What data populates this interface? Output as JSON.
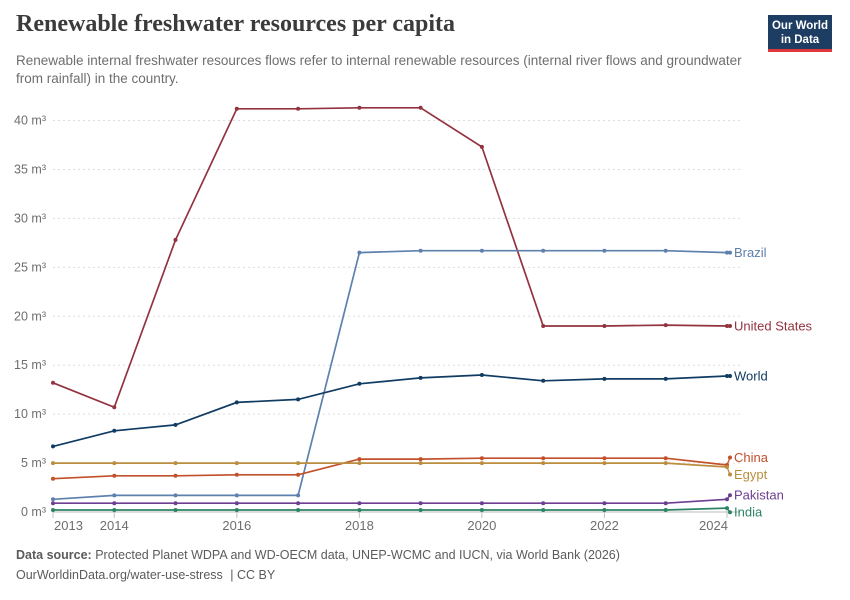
{
  "header": {
    "title": "Renewable freshwater resources per capita",
    "subtitle": "Renewable internal freshwater resources flows refer to internal renewable resources (internal river flows and groundwater from rainfall) in the country.",
    "logo": {
      "line1": "Our World",
      "line2": "in Data"
    }
  },
  "chart_data": {
    "type": "line",
    "title": "Renewable freshwater resources per capita",
    "unit": "m³",
    "x": [
      2013,
      2014,
      2015,
      2016,
      2017,
      2018,
      2019,
      2020,
      2021,
      2022,
      2023,
      2024
    ],
    "xticks": [
      2013,
      2014,
      2016,
      2018,
      2020,
      2022,
      2024
    ],
    "yticks": [
      0,
      5,
      10,
      15,
      20,
      25,
      30,
      35,
      40
    ],
    "ylim": [
      0,
      40
    ],
    "grid": "horizontal-dashed",
    "legend": "end-of-line-labels",
    "markers": true,
    "series": [
      {
        "name": "United States",
        "color": "#92333f",
        "values": [
          13.2,
          10.7,
          27.8,
          41.2,
          41.2,
          41.3,
          41.3,
          37.3,
          19.0,
          19.0,
          19.1,
          19.0
        ]
      },
      {
        "name": "Brazil",
        "color": "#5e80ad",
        "values": [
          1.3,
          1.7,
          1.7,
          1.7,
          1.7,
          26.5,
          26.7,
          26.7,
          26.7,
          26.7,
          26.7,
          26.5
        ]
      },
      {
        "name": "World",
        "color": "#103b63",
        "values": [
          6.7,
          8.3,
          8.9,
          11.2,
          11.5,
          13.1,
          13.7,
          14.0,
          13.4,
          13.6,
          13.6,
          13.9
        ]
      },
      {
        "name": "China",
        "color": "#c2502a",
        "values": [
          3.4,
          3.7,
          3.7,
          3.8,
          3.8,
          5.4,
          5.4,
          5.5,
          5.5,
          5.5,
          5.5,
          4.8
        ]
      },
      {
        "name": "Egypt",
        "color": "#bb8e3f",
        "values": [
          5.0,
          5.0,
          5.0,
          5.0,
          5.0,
          5.0,
          5.0,
          5.0,
          5.0,
          5.0,
          5.0,
          4.6
        ]
      },
      {
        "name": "Pakistan",
        "color": "#6d3e91",
        "values": [
          0.9,
          0.9,
          0.9,
          0.9,
          0.9,
          0.9,
          0.9,
          0.9,
          0.9,
          0.9,
          0.9,
          1.3
        ]
      },
      {
        "name": "India",
        "color": "#2c8465",
        "values": [
          0.2,
          0.2,
          0.2,
          0.2,
          0.2,
          0.2,
          0.2,
          0.2,
          0.2,
          0.2,
          0.2,
          0.4
        ]
      }
    ]
  },
  "footer": {
    "source_label": "Data source:",
    "source_text": "Protected Planet WDPA and WD-OECM data, UNEP-WCMC and IUCN, via World Bank (2026)",
    "license_url": "OurWorldinData.org/water-use-stress",
    "license_suffix": "| CC BY"
  },
  "colors": {
    "background": "#ffffff",
    "title_text": "#3b3b3b",
    "subtitle_text": "#6e6e6e",
    "axis_text": "#6e6e6e",
    "grid": "#dddddd",
    "baseline": "#bbbbbb",
    "tick": "#c0c0c0",
    "footer_text": "#5b5b5b",
    "logo_bg": "#1d3d63",
    "logo_bar": "#e0373c"
  }
}
